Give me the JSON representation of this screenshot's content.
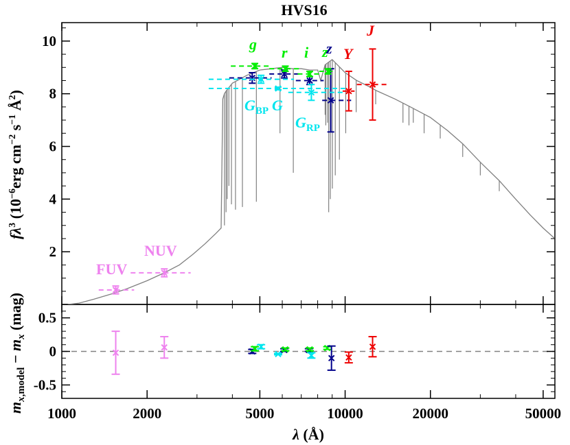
{
  "chart_data": [
    {
      "type": "scatter",
      "panel": "sed",
      "title": "HVS16",
      "xlabel": "",
      "ylabel": "fλ³ (10⁻⁶erg cm⁻² s⁻¹ Å²)",
      "xscale": "log",
      "xlim": [
        1000,
        55000
      ],
      "ylim": [
        0,
        10.7
      ],
      "x_ticks": [
        1000,
        2000,
        5000,
        10000,
        20000,
        50000
      ],
      "y_ticks": [
        2,
        4,
        6,
        8,
        10
      ],
      "grid": false,
      "model_spectrum": {
        "color": "#808080",
        "points": [
          [
            1050,
            0
          ],
          [
            1150,
            0.05
          ],
          [
            1300,
            0.2
          ],
          [
            1500,
            0.4
          ],
          [
            1700,
            0.6
          ],
          [
            2000,
            0.9
          ],
          [
            2300,
            1.2
          ],
          [
            2600,
            1.5
          ],
          [
            2900,
            1.9
          ],
          [
            3200,
            2.3
          ],
          [
            3500,
            2.7
          ],
          [
            3650,
            2.9
          ],
          [
            3700,
            7.8
          ],
          [
            3750,
            8.0
          ],
          [
            3800,
            8.1
          ],
          [
            4000,
            8.4
          ],
          [
            4500,
            8.7
          ],
          [
            5000,
            8.9
          ],
          [
            5500,
            8.95
          ],
          [
            6000,
            9.0
          ],
          [
            6500,
            8.95
          ],
          [
            7000,
            8.95
          ],
          [
            7500,
            8.9
          ],
          [
            8000,
            8.9
          ],
          [
            8200,
            8.5
          ],
          [
            8500,
            9.1
          ],
          [
            9000,
            9.3
          ],
          [
            10000,
            8.8
          ],
          [
            11000,
            8.5
          ],
          [
            12000,
            8.3
          ],
          [
            13000,
            8.1
          ],
          [
            15000,
            7.8
          ],
          [
            17000,
            7.5
          ],
          [
            20000,
            7.1
          ],
          [
            23000,
            6.6
          ],
          [
            26000,
            6.1
          ],
          [
            30000,
            5.4
          ],
          [
            35000,
            4.7
          ],
          [
            40000,
            4.0
          ],
          [
            45000,
            3.4
          ],
          [
            50000,
            2.9
          ],
          [
            55000,
            2.5
          ]
        ],
        "absorption_lines": [
          [
            3750,
            3.0
          ],
          [
            3800,
            3.5
          ],
          [
            3835,
            4.0
          ],
          [
            3889,
            4.5
          ],
          [
            3970,
            3.8
          ],
          [
            4102,
            3.6
          ],
          [
            4340,
            3.7
          ],
          [
            4861,
            3.9
          ],
          [
            5890,
            6.5
          ],
          [
            6563,
            5.0
          ],
          [
            8500,
            7.2
          ],
          [
            8545,
            6.8
          ],
          [
            8665,
            6.9
          ],
          [
            8750,
            3.5
          ],
          [
            8865,
            4.0
          ],
          [
            9015,
            4.4
          ],
          [
            9230,
            4.9
          ],
          [
            9546,
            5.5
          ],
          [
            10049,
            6.5
          ],
          [
            10938,
            7.3
          ],
          [
            12818,
            7.6
          ],
          [
            16000,
            6.9
          ],
          [
            16800,
            6.8
          ],
          [
            17400,
            6.9
          ],
          [
            19000,
            6.5
          ],
          [
            21660,
            6.3
          ],
          [
            26000,
            5.6
          ],
          [
            30000,
            4.9
          ],
          [
            35000,
            4.3
          ]
        ]
      },
      "photometry": [
        {
          "band": "FUV",
          "label": "FUV",
          "color": "#ee82ee",
          "x": 1550,
          "y": 0.55,
          "yerr": 0.15,
          "xrange": [
            1350,
            1800
          ],
          "italic": false
        },
        {
          "band": "NUV",
          "label": "NUV",
          "color": "#ee82ee",
          "x": 2300,
          "y": 1.2,
          "yerr": 0.15,
          "xrange": [
            1750,
            2850
          ],
          "italic": false
        },
        {
          "band": "g_sdss",
          "label": "",
          "color": "#00008b",
          "x": 4700,
          "y": 8.6,
          "yerr": 0.2,
          "xrange": [
            3900,
            5500
          ],
          "italic": true
        },
        {
          "band": "r_sdss",
          "label": "",
          "color": "#00008b",
          "x": 6100,
          "y": 8.75,
          "yerr": 0.15,
          "xrange": [
            5400,
            7000
          ],
          "italic": true
        },
        {
          "band": "i_sdss",
          "label": "",
          "color": "#00008b",
          "x": 7500,
          "y": 8.5,
          "yerr": 0.15,
          "xrange": [
            6700,
            8400
          ],
          "italic": true
        },
        {
          "band": "z_sdss",
          "label": "z",
          "color": "#00008b",
          "x": 8900,
          "y": 7.75,
          "yerr": 1.2,
          "xrange": [
            8300,
            10500
          ],
          "italic": true
        },
        {
          "band": "g_ps",
          "label": "g",
          "color": "#00ee00",
          "x": 4800,
          "y": 9.05,
          "yerr": 0.1,
          "xrange": [
            3950,
            5450
          ],
          "italic": true
        },
        {
          "band": "r_ps",
          "label": "r",
          "color": "#00ee00",
          "x": 6150,
          "y": 8.95,
          "yerr": 0.1,
          "xrange": [
            5400,
            6900
          ],
          "italic": true
        },
        {
          "band": "i_ps",
          "label": "i",
          "color": "#00ee00",
          "x": 7500,
          "y": 8.75,
          "yerr": 0.1,
          "xrange": [
            6800,
            8250
          ],
          "italic": true
        },
        {
          "band": "z_ps",
          "label": "z",
          "color": "#00ee00",
          "x": 8700,
          "y": 8.85,
          "yerr": 0.1,
          "xrange": [
            8100,
            9200
          ],
          "italic": true
        },
        {
          "band": "G_BP",
          "label": "G_BP",
          "color": "#00e5ee",
          "x": 5050,
          "y": 8.55,
          "yerr": 0.15,
          "xrange": [
            3300,
            6600
          ],
          "italic": true
        },
        {
          "band": "G",
          "label": "G",
          "color": "#00e5ee",
          "x": 5800,
          "y": 8.2,
          "yerr": 0.05,
          "xrange": [
            3300,
            10000
          ],
          "italic": true
        },
        {
          "band": "G_RP",
          "label": "G_RP",
          "color": "#00e5ee",
          "x": 7600,
          "y": 8.05,
          "yerr": 0.3,
          "xrange": [
            6300,
            10000
          ],
          "italic": true
        },
        {
          "band": "Y",
          "label": "Y",
          "color": "#ee0000",
          "x": 10300,
          "y": 8.1,
          "yerr": 0.75,
          "xrange": [
            9800,
            10800
          ],
          "italic": true
        },
        {
          "band": "J",
          "label": "J",
          "color": "#ee0000",
          "x": 12500,
          "y": 8.35,
          "yerr": 1.35,
          "xrange": [
            11000,
            14000
          ],
          "italic": true
        }
      ]
    },
    {
      "type": "scatter",
      "panel": "residuals",
      "xlabel": "λ (Å)",
      "ylabel": "m_x,model − m_x (mag)",
      "xscale": "log",
      "xlim": [
        1000,
        55000
      ],
      "ylim": [
        -0.7,
        0.7
      ],
      "x_ticks": [
        1000,
        2000,
        5000,
        10000,
        20000,
        50000
      ],
      "x_tick_labels": [
        "1000",
        "2000",
        "5000",
        "10000",
        "20000",
        "50000"
      ],
      "y_ticks": [
        -0.5,
        0,
        0.5
      ],
      "y_tick_labels": [
        "-0.5",
        "0",
        "0.5"
      ],
      "reference_line": 0,
      "points": [
        {
          "band": "FUV",
          "color": "#ee82ee",
          "x": 1550,
          "y": -0.02,
          "yerr": 0.32
        },
        {
          "band": "NUV",
          "color": "#ee82ee",
          "x": 2300,
          "y": 0.06,
          "yerr": 0.16
        },
        {
          "band": "g_sdss",
          "color": "#00008b",
          "x": 4700,
          "y": 0.0,
          "yerr": 0.03
        },
        {
          "band": "g_ps",
          "color": "#00ee00",
          "x": 4800,
          "y": 0.04,
          "yerr": 0.03
        },
        {
          "band": "G_BP",
          "color": "#00e5ee",
          "x": 5050,
          "y": 0.07,
          "yerr": 0.03
        },
        {
          "band": "G",
          "color": "#00e5ee",
          "x": 5800,
          "y": -0.04,
          "yerr": 0.01
        },
        {
          "band": "r_sdss",
          "color": "#00008b",
          "x": 6100,
          "y": 0.02,
          "yerr": 0.02
        },
        {
          "band": "r_ps",
          "color": "#00ee00",
          "x": 6150,
          "y": 0.03,
          "yerr": 0.02
        },
        {
          "band": "i_sdss",
          "color": "#00008b",
          "x": 7450,
          "y": 0.02,
          "yerr": 0.02
        },
        {
          "band": "i_ps",
          "color": "#00ee00",
          "x": 7500,
          "y": 0.03,
          "yerr": 0.02
        },
        {
          "band": "G_RP",
          "color": "#00e5ee",
          "x": 7600,
          "y": -0.06,
          "yerr": 0.04
        },
        {
          "band": "z_ps",
          "color": "#00ee00",
          "x": 8650,
          "y": 0.05,
          "yerr": 0.02
        },
        {
          "band": "z_sdss",
          "color": "#00008b",
          "x": 8950,
          "y": -0.1,
          "yerr": 0.18
        },
        {
          "band": "Y",
          "color": "#ee0000",
          "x": 10300,
          "y": -0.09,
          "yerr": 0.08
        },
        {
          "band": "J",
          "color": "#ee0000",
          "x": 12500,
          "y": 0.07,
          "yerr": 0.15
        }
      ]
    }
  ],
  "labels": {
    "title": "HVS16",
    "y_top_prefix": "f",
    "y_top_lambda": "λ",
    "y_top_exp3": "3",
    "y_top_units_a": " (10",
    "y_top_exp_m6": "−6",
    "y_top_units_b": "erg cm",
    "y_top_exp_m2": "−2",
    "y_top_units_c": " s",
    "y_top_exp_m1": "−1",
    "y_top_units_d": " Å",
    "y_top_exp_2": "2",
    "y_top_units_e": ")",
    "y_bot_m1": "m",
    "y_bot_sub1": "x",
    "y_bot_sub1b": ",model",
    "y_bot_minus": " − ",
    "y_bot_m2": "m",
    "y_bot_sub2": "x",
    "y_bot_units": " (mag)",
    "x_lambda": "λ",
    "x_units": " (Å)",
    "band_FUV": "FUV",
    "band_NUV": "NUV",
    "band_g": "g",
    "band_r": "r",
    "band_i": "i",
    "band_z_ps": "z",
    "band_z_sdss": "z",
    "band_Y": "Y",
    "band_J": "J",
    "band_GBP_main": "G",
    "band_GBP_sub": "BP",
    "band_G": "G",
    "band_GRP_main": "G",
    "band_GRP_sub": "RP"
  },
  "colors": {
    "galex": "#ee82ee",
    "sdss": "#00008b",
    "panstarrs": "#00ee00",
    "gaia": "#00e5ee",
    "ukidss": "#ee0000",
    "model": "#808080",
    "zero_line": "#808080"
  }
}
